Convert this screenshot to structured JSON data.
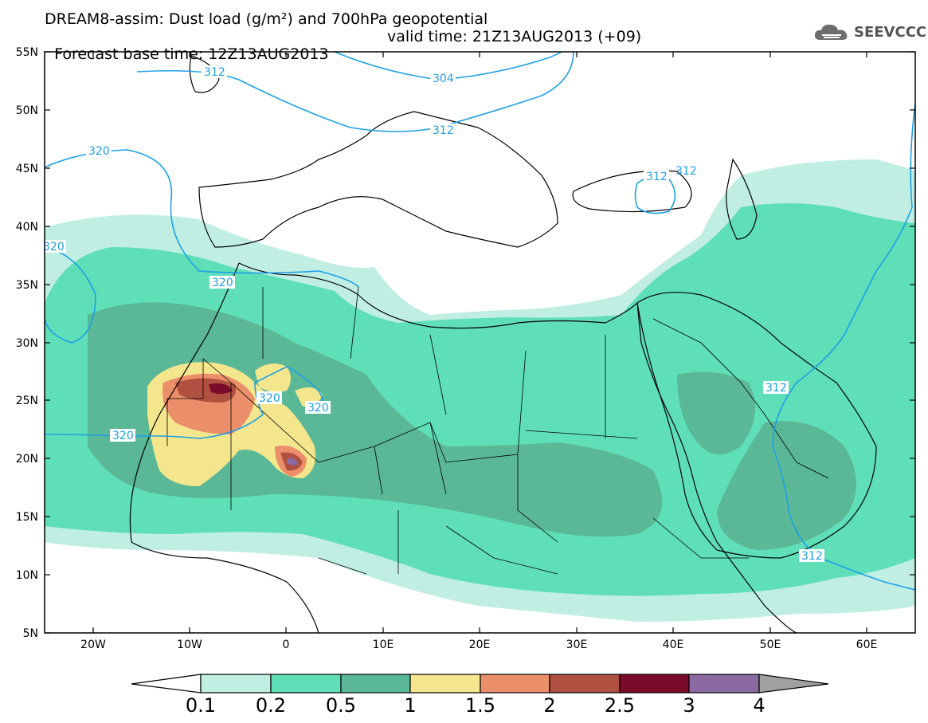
{
  "title": {
    "line1": "DREAM8-assim: Dust load (g/m²) and 700hPa geopotential",
    "base": "Forecast base time: 12Z13AUG2013",
    "valid": "valid time: 21Z13AUG2013 (+09)"
  },
  "logo": {
    "text": "SEEVCCC",
    "icon": "cloud-logo-icon"
  },
  "axes": {
    "lat_labels": [
      "55N",
      "50N",
      "45N",
      "40N",
      "35N",
      "30N",
      "25N",
      "20N",
      "15N",
      "10N",
      "5N"
    ],
    "lon_labels": [
      "20W",
      "10W",
      "0",
      "10E",
      "20E",
      "30E",
      "40E",
      "50E",
      "60E"
    ]
  },
  "contours": {
    "labels": [
      "312",
      "304",
      "312",
      "320",
      "312",
      "312",
      "320",
      "320",
      "320",
      "320",
      "312",
      "312"
    ]
  },
  "colorbar": {
    "ticks": [
      "0.1",
      "0.2",
      "0.5",
      "1",
      "1.5",
      "2",
      "2.5",
      "3",
      "4"
    ],
    "colors": [
      "#c0eee3",
      "#5fdfb8",
      "#5ab897",
      "#f4e68c",
      "#ea8f6a",
      "#b05040",
      "#7a0b2a",
      "#8a6aa0",
      "#a0a0a0"
    ]
  }
}
